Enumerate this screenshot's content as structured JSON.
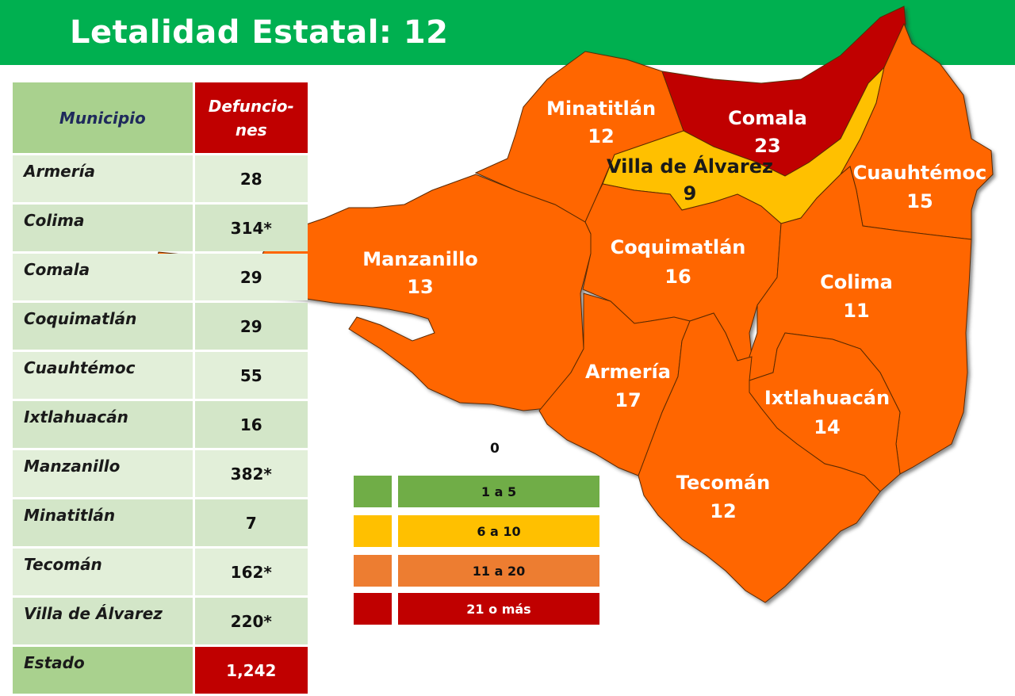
{
  "header": {
    "title": "Letalidad Estatal: 12",
    "color": "#00b050"
  },
  "table": {
    "headers": {
      "municipio": "Municipio",
      "defunciones": "Defuncio-\nnes"
    },
    "rows": [
      {
        "municipio": "Armería",
        "defunciones": "28"
      },
      {
        "municipio": "Colima",
        "defunciones": "314*"
      },
      {
        "municipio": "Comala",
        "defunciones": "29"
      },
      {
        "municipio": "Coquimatlán",
        "defunciones": "29"
      },
      {
        "municipio": "Cuauhtémoc",
        "defunciones": "55"
      },
      {
        "municipio": "Ixtlahuacán",
        "defunciones": "16"
      },
      {
        "municipio": "Manzanillo",
        "defunciones": "382*"
      },
      {
        "municipio": "Minatitlán",
        "defunciones": "7"
      },
      {
        "municipio": "Tecomán",
        "defunciones": "162*"
      },
      {
        "municipio": "Villa de Álvarez",
        "defunciones": "220*"
      }
    ],
    "total": {
      "municipio": "Estado",
      "defunciones": "1,242"
    }
  },
  "map": {
    "regions": [
      {
        "name": "Minatitlán",
        "value": "12",
        "color": "#ff6600"
      },
      {
        "name": "Comala",
        "value": "23",
        "color": "#c00000"
      },
      {
        "name": "Villa de Álvarez",
        "value": "9",
        "color": "#ffc000"
      },
      {
        "name": "Cuauhtémoc",
        "value": "15",
        "color": "#ff6600"
      },
      {
        "name": "Manzanillo",
        "value": "13",
        "color": "#ff6600"
      },
      {
        "name": "Coquimatlán",
        "value": "16",
        "color": "#ff6600"
      },
      {
        "name": "Colima",
        "value": "11",
        "color": "#ff6600"
      },
      {
        "name": "Armería",
        "value": "17",
        "color": "#ff6600"
      },
      {
        "name": "Ixtlahuacán",
        "value": "14",
        "color": "#ff6600"
      },
      {
        "name": "Tecomán",
        "value": "12",
        "color": "#ff6600"
      }
    ]
  },
  "legend": {
    "zero_label": "0",
    "items": [
      {
        "label": "1 a 5",
        "color": "#70ad47"
      },
      {
        "label": "6 a 10",
        "color": "#ffc000"
      },
      {
        "label": "11 a 20",
        "color": "#ed7d31"
      },
      {
        "label": "21 o más",
        "color": "#c00000"
      }
    ]
  }
}
